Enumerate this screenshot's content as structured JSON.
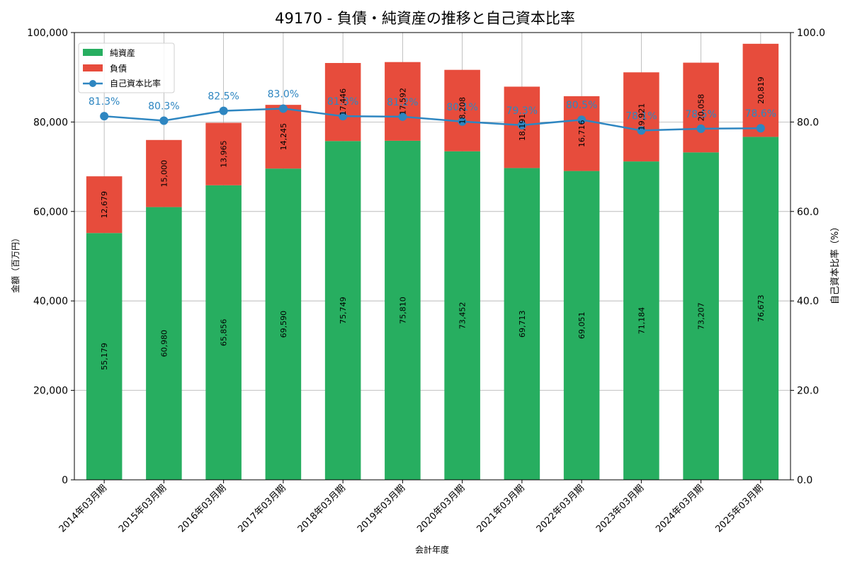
{
  "chart_data": {
    "type": "bar",
    "title": "49170 - 負債・純資産の推移と自己資本比率",
    "xlabel": "会計年度",
    "ylabel": "金額（百万円）",
    "y2label": "自己資本比率（%）",
    "categories": [
      "2014年03月期",
      "2015年03月期",
      "2016年03月期",
      "2017年03月期",
      "2018年03月期",
      "2019年03月期",
      "2020年03月期",
      "2021年03月期",
      "2022年03月期",
      "2023年03月期",
      "2024年03月期",
      "2025年03月期"
    ],
    "stacked": true,
    "series": [
      {
        "name": "純資産",
        "color": "#27ae60",
        "values": [
          55179,
          60980,
          65856,
          69590,
          75749,
          75810,
          73452,
          69713,
          69051,
          71184,
          73207,
          76673
        ],
        "labels": [
          "55,179",
          "60,980",
          "65,856",
          "69,590",
          "75,749",
          "75,810",
          "73,452",
          "69,713",
          "69,051",
          "71,184",
          "73,207",
          "76,673"
        ]
      },
      {
        "name": "負債",
        "color": "#e74c3c",
        "values": [
          12679,
          15000,
          13965,
          14245,
          17446,
          17592,
          18208,
          18191,
          16716,
          19921,
          20058,
          20819
        ],
        "labels": [
          "12,679",
          "15,000",
          "13,965",
          "14,245",
          "17,446",
          "17,592",
          "18,208",
          "18,191",
          "16,716",
          "19,921",
          "20,058",
          "20,819"
        ]
      }
    ],
    "line_series": {
      "name": "自己資本比率",
      "color": "#2e86c1",
      "axis": "right",
      "values": [
        81.3,
        80.3,
        82.5,
        83.0,
        81.3,
        81.2,
        80.1,
        79.3,
        80.5,
        78.1,
        78.5,
        78.6
      ],
      "labels": [
        "81.3%",
        "80.3%",
        "82.5%",
        "83.0%",
        "81.3%",
        "81.2%",
        "80.1%",
        "79.3%",
        "80.5%",
        "78.1%",
        "78.5%",
        "78.6%"
      ]
    },
    "ylim": [
      0,
      100000
    ],
    "y2lim": [
      0,
      100
    ],
    "yticks": [
      "0",
      "20,000",
      "40,000",
      "60,000",
      "80,000",
      "100,000"
    ],
    "y2ticks": [
      "0.0",
      "20.0",
      "40.0",
      "60.0",
      "80.0",
      "100.0"
    ],
    "grid": true,
    "legend": "top-left"
  }
}
